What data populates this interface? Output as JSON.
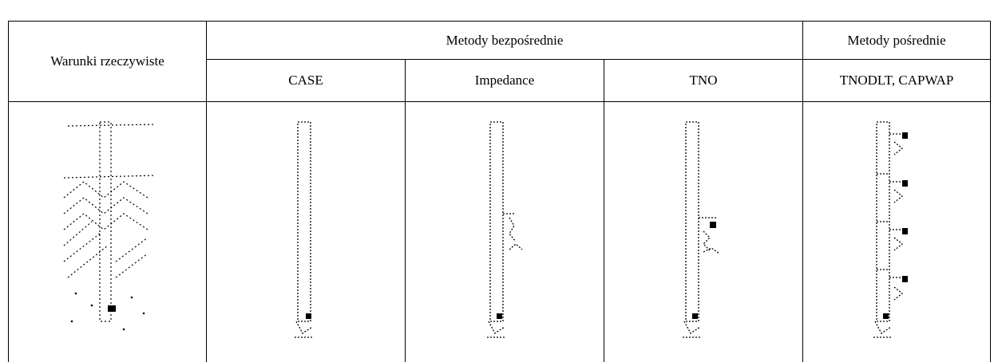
{
  "table": {
    "header": {
      "conditions": "Warunki rzeczywiste",
      "direct": "Metody bezpośrednie",
      "indirect": "Metody pośrednie"
    },
    "columns": [
      "CASE",
      "Impedance",
      "TNO",
      "TNODLT, CAPWAP"
    ]
  }
}
